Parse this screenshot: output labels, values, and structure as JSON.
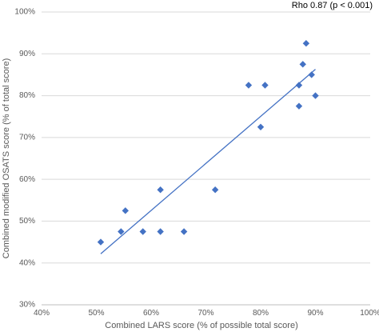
{
  "chart_data": {
    "type": "scatter",
    "title": "",
    "annotation": "Rho 0.87 (p < 0.001)",
    "xlabel": "Combined LARS score (% of possible total score)",
    "ylabel": "Combined modified OSATS score (% of total score)",
    "xlim": [
      40,
      100
    ],
    "ylim": [
      30,
      100
    ],
    "x_ticks": [
      40,
      50,
      60,
      70,
      80,
      90,
      100
    ],
    "y_ticks": [
      30,
      40,
      50,
      60,
      70,
      80,
      90,
      100
    ],
    "x_tick_labels": [
      "40%",
      "50%",
      "60%",
      "70%",
      "80%",
      "90%",
      "100%"
    ],
    "y_tick_labels": [
      "30%",
      "40%",
      "50%",
      "60%",
      "70%",
      "80%",
      "90%",
      "100%"
    ],
    "grid": "horizontal",
    "marker": "diamond",
    "points": [
      {
        "x": 50.8,
        "y": 45
      },
      {
        "x": 54.5,
        "y": 47.5
      },
      {
        "x": 55.3,
        "y": 52.5
      },
      {
        "x": 58.5,
        "y": 47.5
      },
      {
        "x": 61.7,
        "y": 57.5
      },
      {
        "x": 61.7,
        "y": 47.5
      },
      {
        "x": 66.0,
        "y": 47.5
      },
      {
        "x": 71.7,
        "y": 57.5
      },
      {
        "x": 77.8,
        "y": 82.5
      },
      {
        "x": 80.0,
        "y": 72.5
      },
      {
        "x": 80.8,
        "y": 82.5
      },
      {
        "x": 87.0,
        "y": 82.5
      },
      {
        "x": 87.0,
        "y": 77.5
      },
      {
        "x": 87.7,
        "y": 87.5
      },
      {
        "x": 88.3,
        "y": 92.5
      },
      {
        "x": 89.3,
        "y": 85.0
      },
      {
        "x": 90.0,
        "y": 80.0
      }
    ],
    "trendline": {
      "type": "linear",
      "x": [
        50.8,
        90.0
      ],
      "y": [
        42.2,
        86.3
      ]
    },
    "colors": {
      "marker": "#4472C4",
      "trendline": "#4472C4",
      "grid": "#d9d9d9",
      "axis": "#bfbfbf"
    }
  }
}
